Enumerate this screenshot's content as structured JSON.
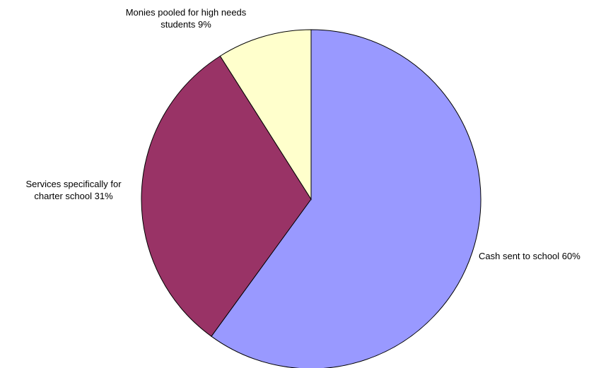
{
  "chart_data": {
    "type": "pie",
    "title": "",
    "categories": [
      "Cash sent to school",
      "Services specifically for charter school",
      "Monies pooled for high needs students"
    ],
    "values": [
      60,
      31,
      9
    ],
    "unit": "%",
    "labels": [
      [
        "Cash sent to school 60%"
      ],
      [
        "Services specifically for",
        "charter school 31%"
      ],
      [
        "Monies pooled for high needs",
        "students 9%"
      ]
    ],
    "colors": [
      "#9999ff",
      "#993366",
      "#ffffcc"
    ],
    "legend": "none"
  }
}
